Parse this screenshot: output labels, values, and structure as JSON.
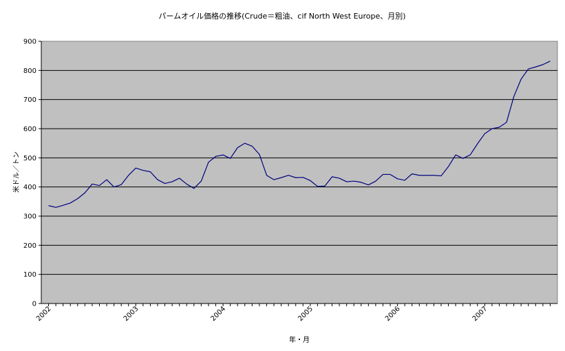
{
  "chart_data": {
    "type": "line",
    "title": "パームオイル価格の推移(Crude＝粗油、cif North West Europe、月別)",
    "xlabel": "年・月",
    "ylabel": "米ドル／トン",
    "ylim": [
      0,
      900
    ],
    "yticks": [
      0,
      100,
      200,
      300,
      400,
      500,
      600,
      700,
      800,
      900
    ],
    "xtick_labels": [
      "2002",
      "2003",
      "2004",
      "2005",
      "2006",
      "2007"
    ],
    "grid": true,
    "legend": "none",
    "series": [
      {
        "color": "#000080",
        "x": [
          "2002-01",
          "2002-02",
          "2002-03",
          "2002-04",
          "2002-05",
          "2002-06",
          "2002-07",
          "2002-08",
          "2002-09",
          "2002-10",
          "2002-11",
          "2002-12",
          "2003-01",
          "2003-02",
          "2003-03",
          "2003-04",
          "2003-05",
          "2003-06",
          "2003-07",
          "2003-08",
          "2003-09",
          "2003-10",
          "2003-11",
          "2003-12",
          "2004-01",
          "2004-02",
          "2004-03",
          "2004-04",
          "2004-05",
          "2004-06",
          "2004-07",
          "2004-08",
          "2004-09",
          "2004-10",
          "2004-11",
          "2004-12",
          "2005-01",
          "2005-02",
          "2005-03",
          "2005-04",
          "2005-05",
          "2005-06",
          "2005-07",
          "2005-08",
          "2005-09",
          "2005-10",
          "2005-11",
          "2005-12",
          "2006-01",
          "2006-02",
          "2006-03",
          "2006-04",
          "2006-05",
          "2006-06",
          "2006-07",
          "2006-08",
          "2006-09",
          "2006-10",
          "2006-11",
          "2006-12",
          "2007-01",
          "2007-02",
          "2007-03",
          "2007-04",
          "2007-05",
          "2007-06",
          "2007-07",
          "2007-08",
          "2007-09",
          "2007-10"
        ],
        "values": [
          336,
          330,
          337,
          345,
          360,
          380,
          410,
          405,
          425,
          400,
          408,
          440,
          465,
          457,
          452,
          425,
          412,
          418,
          430,
          410,
          395,
          420,
          485,
          505,
          510,
          498,
          535,
          550,
          540,
          512,
          440,
          425,
          432,
          440,
          432,
          433,
          422,
          402,
          403,
          435,
          430,
          418,
          420,
          416,
          407,
          420,
          443,
          443,
          428,
          423,
          445,
          440,
          440,
          440,
          438,
          470,
          510,
          498,
          510,
          548,
          583,
          600,
          605,
          622,
          710,
          770,
          805,
          812,
          820,
          832
        ]
      }
    ]
  }
}
